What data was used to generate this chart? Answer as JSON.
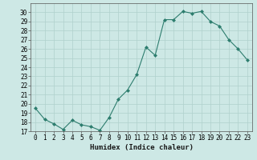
{
  "x": [
    0,
    1,
    2,
    3,
    4,
    5,
    6,
    7,
    8,
    9,
    10,
    11,
    12,
    13,
    14,
    15,
    16,
    17,
    18,
    19,
    20,
    21,
    22,
    23
  ],
  "y": [
    19.5,
    18.3,
    17.8,
    17.2,
    18.2,
    17.7,
    17.5,
    17.1,
    18.5,
    20.5,
    21.5,
    23.2,
    26.2,
    25.3,
    29.2,
    29.2,
    30.1,
    29.9,
    30.1,
    29.0,
    28.5,
    27.0,
    26.0,
    24.8
  ],
  "line_color": "#2d7d6e",
  "marker": "D",
  "marker_size": 2,
  "bg_color": "#cde8e5",
  "grid_color": "#b0d0cc",
  "xlabel": "Humidex (Indice chaleur)",
  "ylim": [
    17,
    31
  ],
  "xlim": [
    -0.5,
    23.5
  ],
  "yticks": [
    17,
    18,
    19,
    20,
    21,
    22,
    23,
    24,
    25,
    26,
    27,
    28,
    29,
    30
  ],
  "xticks": [
    0,
    1,
    2,
    3,
    4,
    5,
    6,
    7,
    8,
    9,
    10,
    11,
    12,
    13,
    14,
    15,
    16,
    17,
    18,
    19,
    20,
    21,
    22,
    23
  ],
  "xtick_labels": [
    "0",
    "1",
    "2",
    "3",
    "4",
    "5",
    "6",
    "7",
    "8",
    "9",
    "10",
    "11",
    "12",
    "13",
    "14",
    "15",
    "16",
    "17",
    "18",
    "19",
    "20",
    "21",
    "22",
    "23"
  ],
  "tick_fontsize": 5.5,
  "xlabel_fontsize": 6.5,
  "spine_color": "#555555"
}
